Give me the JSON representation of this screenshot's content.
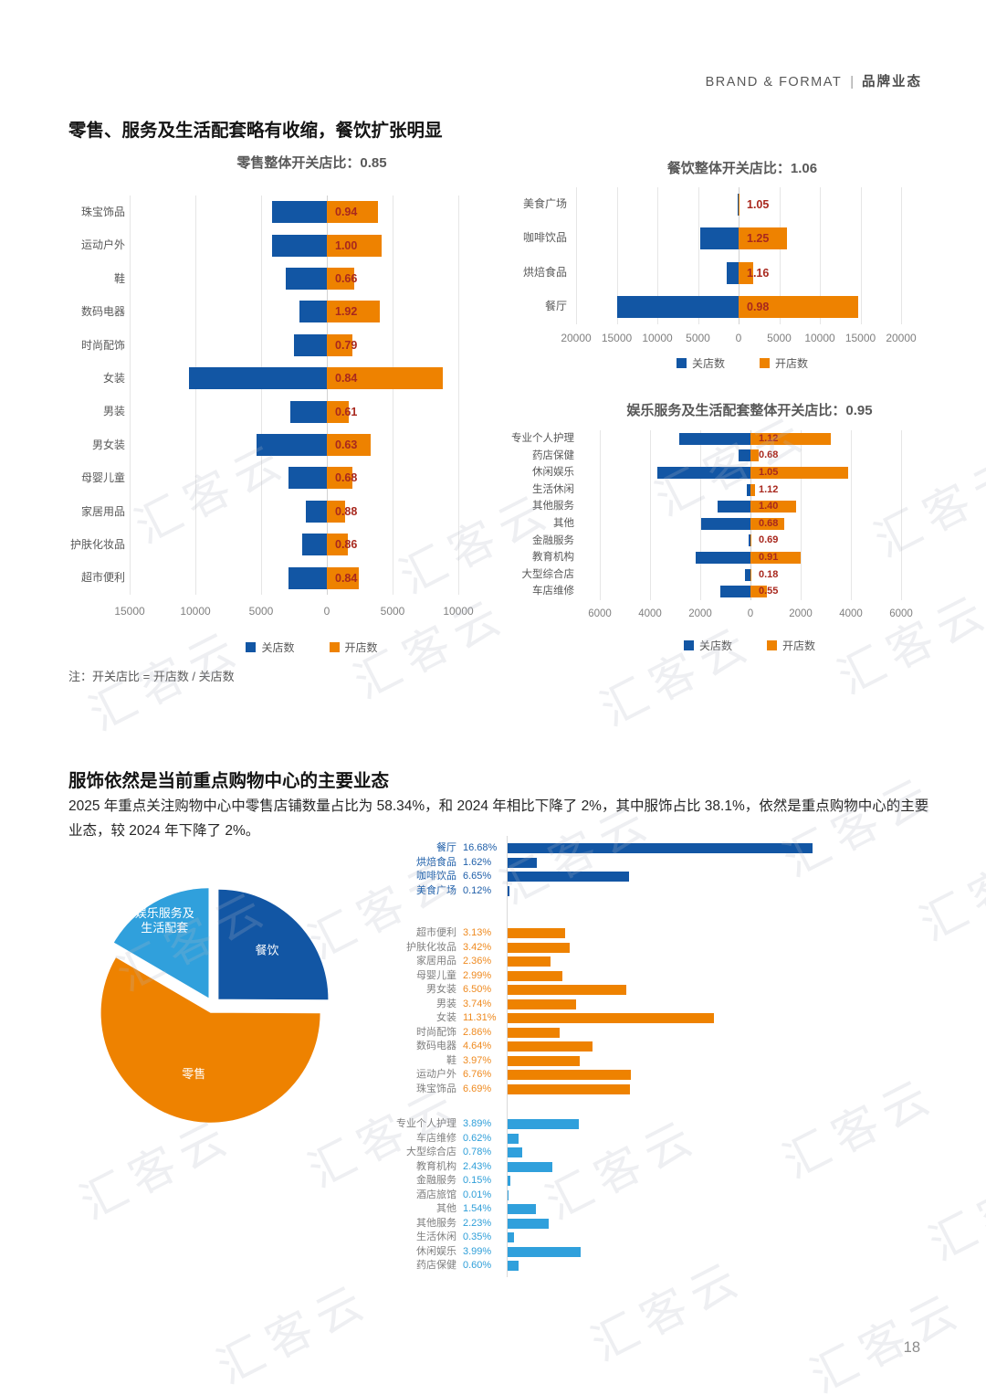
{
  "page_number": "18",
  "watermark": "汇客云",
  "header": {
    "brand": "BRAND & FORMAT",
    "divider": "|",
    "category": "品牌业态"
  },
  "colors": {
    "dark_blue": "#1256a4",
    "orange": "#ee8200",
    "light_blue": "#30a0dc",
    "ratio_red": "#a8281e",
    "blue_label": "#1f5fa9",
    "orange_label": "#ef8a1f",
    "light_blue_label": "#2f9fd9",
    "category_gray": "#7f7f7f"
  },
  "section1": {
    "title": "零售、服务及生活配套略有收缩，餐饮扩张明显",
    "note": "注：开关店比 = 开店数 / 关店数"
  },
  "section2": {
    "title": "服饰依然是当前重点购物中心的主要业态",
    "body": "2025 年重点关注购物中心中零售店铺数量占比为 58.34%，和 2024 年相比下降了 2%，其中服饰占比 38.1%，依然是重点购物中心的主要业态，较 2024 年下降了 2%。"
  },
  "chart_data": [
    {
      "id": "retail",
      "type": "bar",
      "subtype": "diverging-horizontal",
      "title": "零售整体开关店比：0.85",
      "overall_ratio": "0.85",
      "categories": [
        "珠宝饰品",
        "运动户外",
        "鞋",
        "数码电器",
        "时尚配饰",
        "女装",
        "男装",
        "男女装",
        "母婴儿童",
        "家居用品",
        "护肤化妆品",
        "超市便利"
      ],
      "series": [
        {
          "name": "关店数",
          "values": [
            4170,
            4170,
            3100,
            2080,
            2480,
            10500,
            2770,
            5320,
            2900,
            1590,
            1870,
            2910
          ]
        },
        {
          "name": "开店数",
          "values": [
            3920,
            4170,
            2050,
            3990,
            1960,
            8820,
            1690,
            3350,
            1970,
            1400,
            1610,
            2440
          ]
        }
      ],
      "ratio_labels": [
        "0.94",
        "1.00",
        "0.66",
        "1.92",
        "0.79",
        "0.84",
        "0.61",
        "0.63",
        "0.68",
        "0.88",
        "0.86",
        "0.84"
      ],
      "x_ticks": [
        -15000,
        -10000,
        -5000,
        0,
        5000,
        10000
      ],
      "x_tick_labels": [
        "15000",
        "10000",
        "5000",
        "0",
        "5000",
        "10000"
      ],
      "legend": [
        "关店数",
        "开店数"
      ],
      "values_estimated_from_axis": true
    },
    {
      "id": "food",
      "type": "bar",
      "subtype": "diverging-horizontal",
      "title": "餐饮整体开关店比：1.06",
      "overall_ratio": "1.06",
      "categories": [
        "美食广场",
        "咖啡饮品",
        "烘焙食品",
        "餐厅"
      ],
      "series": [
        {
          "name": "关店数",
          "values": [
            120,
            4750,
            1500,
            15000
          ]
        },
        {
          "name": "开店数",
          "values": [
            126,
            5940,
            1740,
            14700
          ]
        }
      ],
      "ratio_labels": [
        "1.05",
        "1.25",
        "1.16",
        "0.98"
      ],
      "x_ticks": [
        -20000,
        -15000,
        -10000,
        -5000,
        0,
        5000,
        10000,
        15000,
        20000
      ],
      "x_tick_labels": [
        "20000",
        "15000",
        "10000",
        "5000",
        "0",
        "5000",
        "10000",
        "15000",
        "20000"
      ],
      "legend": [
        "关店数",
        "开店数"
      ],
      "values_estimated_from_axis": true
    },
    {
      "id": "ent",
      "type": "bar",
      "subtype": "diverging-horizontal",
      "title": "娱乐服务及生活配套整体开关店比：0.95",
      "overall_ratio": "0.95",
      "categories": [
        "专业个人护理",
        "药店保健",
        "休闲娱乐",
        "生活休闲",
        "其他服务",
        "其他",
        "金融服务",
        "教育机构",
        "大型综合店",
        "车店维修"
      ],
      "series": [
        {
          "name": "关店数",
          "values": [
            2850,
            480,
            3700,
            150,
            1300,
            1950,
            60,
            2200,
            220,
            1200
          ]
        },
        {
          "name": "开店数",
          "values": [
            3190,
            330,
            3890,
            170,
            1820,
            1330,
            40,
            2000,
            40,
            660
          ]
        }
      ],
      "ratio_labels": [
        "1.12",
        "0.68",
        "1.05",
        "1.12",
        "1.40",
        "0.68",
        "0.69",
        "0.91",
        "0.18",
        "0.55"
      ],
      "x_ticks": [
        -6000,
        -4000,
        -2000,
        0,
        2000,
        4000,
        6000
      ],
      "x_tick_labels": [
        "6000",
        "4000",
        "2000",
        "0",
        "2000",
        "4000",
        "6000"
      ],
      "legend": [
        "关店数",
        "开店数"
      ],
      "values_estimated_from_axis": true
    },
    {
      "id": "pie",
      "type": "pie",
      "slices": [
        {
          "label": "餐饮",
          "value": 25.07,
          "color_key": "dark_blue"
        },
        {
          "label": "零售",
          "value": 58.34,
          "color_key": "orange"
        },
        {
          "label": "娱乐服务及|生活配套",
          "value": 16.59,
          "color_key": "light_blue"
        }
      ],
      "values_derived_from_group_totals": true
    },
    {
      "id": "share",
      "type": "bar",
      "subtype": "horizontal-grouped",
      "groups": [
        {
          "name": "餐饮",
          "color_key": "dark_blue",
          "label_color_key": "blue_label",
          "items": [
            {
              "label": "餐厅",
              "value": 16.68,
              "label_text": "16.68%"
            },
            {
              "label": "烘焙食品",
              "value": 1.62,
              "label_text": "1.62%"
            },
            {
              "label": "咖啡饮品",
              "value": 6.65,
              "label_text": "6.65%"
            },
            {
              "label": "美食广场",
              "value": 0.12,
              "label_text": "0.12%"
            }
          ]
        },
        {
          "name": "零售",
          "color_key": "orange",
          "label_color_key": "orange_label",
          "items": [
            {
              "label": "超市便利",
              "value": 3.13,
              "label_text": "3.13%"
            },
            {
              "label": "护肤化妆品",
              "value": 3.42,
              "label_text": "3.42%"
            },
            {
              "label": "家居用品",
              "value": 2.36,
              "label_text": "2.36%"
            },
            {
              "label": "母婴儿童",
              "value": 2.99,
              "label_text": "2.99%"
            },
            {
              "label": "男女装",
              "value": 6.5,
              "label_text": "6.50%"
            },
            {
              "label": "男装",
              "value": 3.74,
              "label_text": "3.74%"
            },
            {
              "label": "女装",
              "value": 11.31,
              "label_text": "11.31%"
            },
            {
              "label": "时尚配饰",
              "value": 2.86,
              "label_text": "2.86%"
            },
            {
              "label": "数码电器",
              "value": 4.64,
              "label_text": "4.64%"
            },
            {
              "label": "鞋",
              "value": 3.97,
              "label_text": "3.97%"
            },
            {
              "label": "运动户外",
              "value": 6.76,
              "label_text": "6.76%"
            },
            {
              "label": "珠宝饰品",
              "value": 6.69,
              "label_text": "6.69%"
            }
          ]
        },
        {
          "name": "娱乐服务及生活配套",
          "color_key": "light_blue",
          "label_color_key": "light_blue_label",
          "items": [
            {
              "label": "专业个人护理",
              "value": 3.89,
              "label_text": "3.89%"
            },
            {
              "label": "车店维修",
              "value": 0.62,
              "label_text": "0.62%"
            },
            {
              "label": "大型综合店",
              "value": 0.78,
              "label_text": "0.78%"
            },
            {
              "label": "教育机构",
              "value": 2.43,
              "label_text": "2.43%"
            },
            {
              "label": "金融服务",
              "value": 0.15,
              "label_text": "0.15%"
            },
            {
              "label": "酒店旅馆",
              "value": 0.01,
              "label_text": "0.01%"
            },
            {
              "label": "其他",
              "value": 1.54,
              "label_text": "1.54%"
            },
            {
              "label": "其他服务",
              "value": 2.23,
              "label_text": "2.23%"
            },
            {
              "label": "生活休闲",
              "value": 0.35,
              "label_text": "0.35%"
            },
            {
              "label": "休闲娱乐",
              "value": 3.99,
              "label_text": "3.99%"
            },
            {
              "label": "药店保健",
              "value": 0.6,
              "label_text": "0.60%"
            }
          ]
        }
      ]
    }
  ]
}
